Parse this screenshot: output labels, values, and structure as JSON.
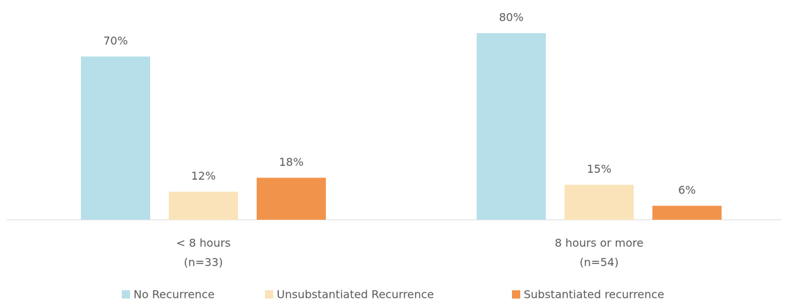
{
  "chart_data": {
    "type": "bar",
    "categories": [
      "< 8 hours\n(n=33)",
      "8 hours or more\n(n=54)"
    ],
    "series": [
      {
        "name": "No Recurrence",
        "color": "#b7dfea",
        "values": [
          70,
          80
        ],
        "value_labels": [
          "70%",
          "80%"
        ]
      },
      {
        "name": "Unsubstantiated Recurrence",
        "color": "#fae3b8",
        "values": [
          12,
          15
        ],
        "value_labels": [
          "12%",
          "15%"
        ]
      },
      {
        "name": "Substantiated recurrence",
        "color": "#f2934b",
        "values": [
          18,
          6
        ],
        "value_labels": [
          "18%",
          "6%"
        ]
      }
    ],
    "legend": "bottom"
  }
}
